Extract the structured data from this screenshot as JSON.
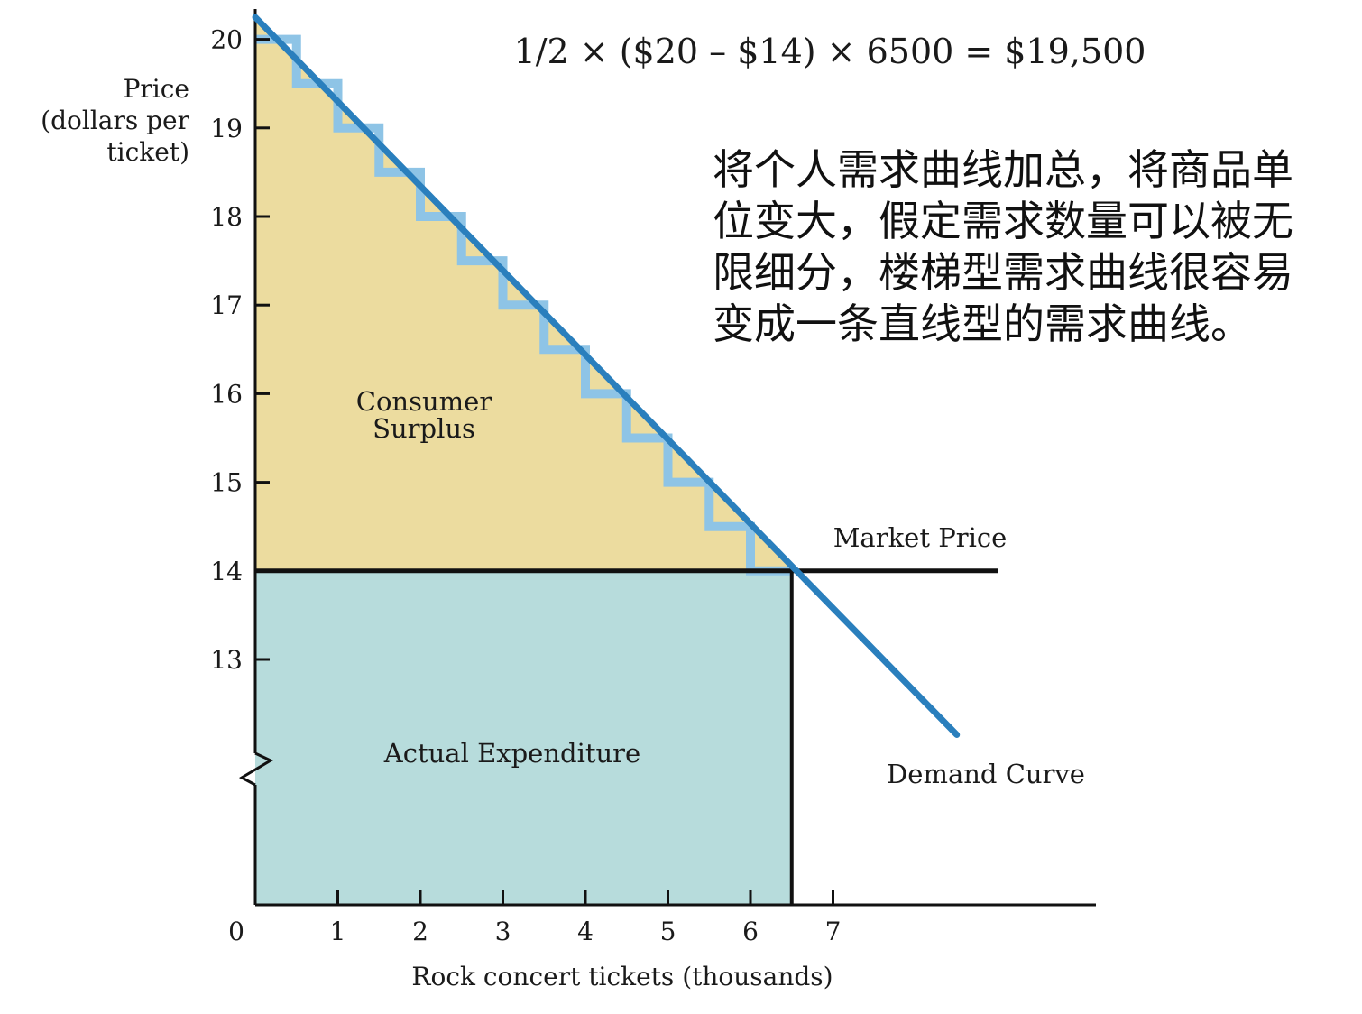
{
  "chart_data": {
    "type": "area",
    "title": "1/2 × ($20 – $14) × 6500 = $19,500",
    "ylabel": [
      "Price",
      "(dollars per",
      "ticket)"
    ],
    "xlabel": "Rock concert tickets (thousands)",
    "x_ticks": [
      "0",
      "1",
      "2",
      "3",
      "4",
      "5",
      "6",
      "7"
    ],
    "y_ticks": [
      "13",
      "14",
      "15",
      "16",
      "17",
      "18",
      "19",
      "20"
    ],
    "xlim": [
      0,
      10
    ],
    "ylim_visible": [
      12.3,
      20.6
    ],
    "y_axis_break": true,
    "grid": false,
    "demand_curve": {
      "name": "Demand Curve",
      "x": [
        0,
        8.5
      ],
      "y": [
        20.25,
        12.15
      ]
    },
    "stair_demand": {
      "x": [
        0,
        0.5,
        1,
        1.5,
        2,
        2.5,
        3,
        3.5,
        4,
        4.5,
        5,
        5.5,
        6,
        6.5
      ],
      "y": [
        20,
        19.5,
        19,
        18.5,
        18,
        17.5,
        17,
        16.5,
        16,
        15.5,
        15,
        14.5,
        14,
        14
      ]
    },
    "market_price": {
      "name": "Market Price",
      "y": 14,
      "x": [
        0,
        9
      ]
    },
    "quantity_sold": 6.5,
    "regions": [
      {
        "name": "Consumer Surplus",
        "label": [
          "Consumer",
          "Surplus"
        ],
        "color": "#ecdc9f"
      },
      {
        "name": "Actual Expenditure",
        "label": [
          "Actual Expenditure"
        ],
        "color": "#b7dcdc"
      }
    ],
    "colors": {
      "curve": "#2a7fbd",
      "stairs": "#8ec4e6",
      "axis": "#111111"
    }
  },
  "annotation": {
    "lines": [
      "将个人需求曲线加总，将商品单",
      "位变大，假定需求数量可以被无",
      "限细分，楼梯型需求曲线很容易",
      "变成一条直线型的需求曲线。"
    ]
  }
}
